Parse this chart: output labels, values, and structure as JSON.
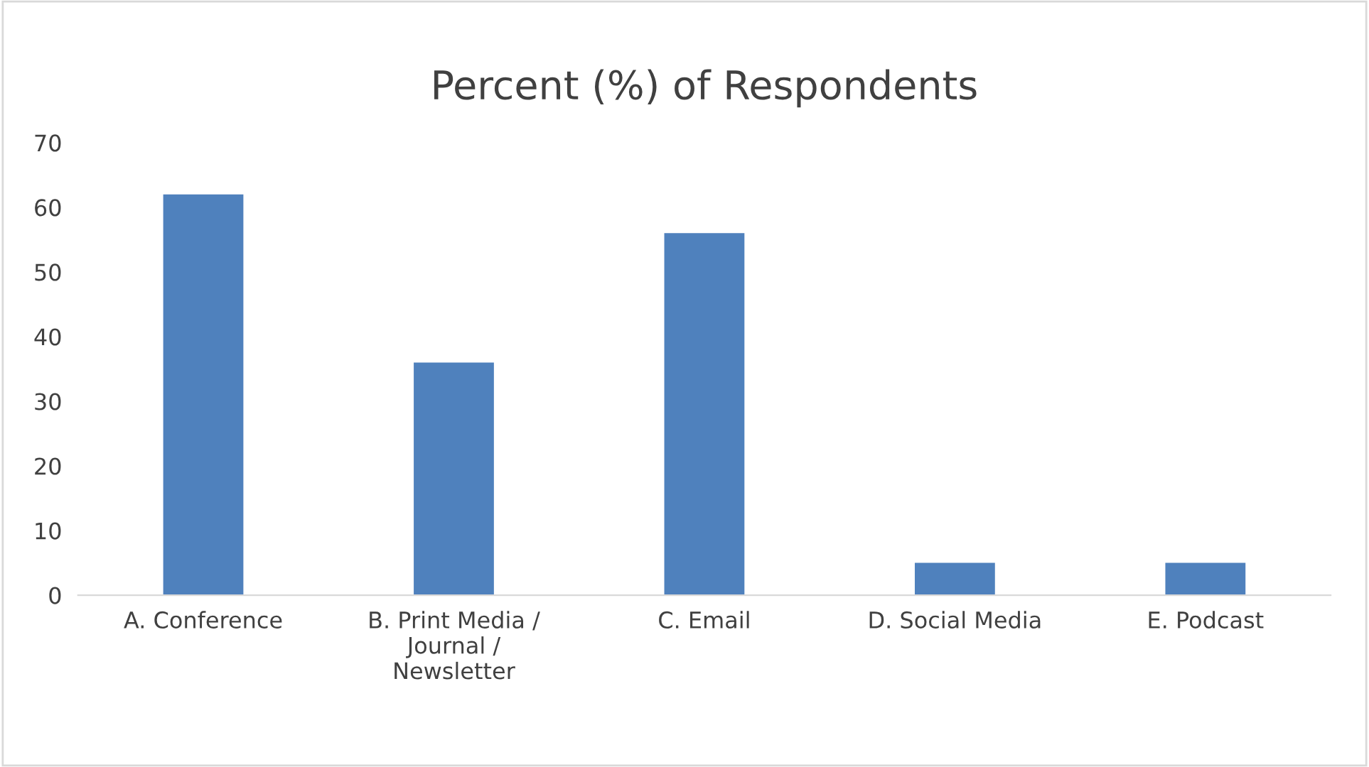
{
  "chart_data": {
    "type": "bar",
    "title": "Percent (%) of Respondents",
    "categories": [
      "A. Conference",
      "B. Print Media /\nJournal /\nNewsletter",
      "C. Email",
      "D. Social Media",
      "E. Podcast"
    ],
    "values": [
      62,
      36,
      56,
      5,
      5
    ],
    "color": "#4f81bd",
    "ylim": [
      0,
      70
    ],
    "yticks": [
      0,
      10,
      20,
      30,
      40,
      50,
      60,
      70
    ],
    "grid": false,
    "legend": false
  }
}
